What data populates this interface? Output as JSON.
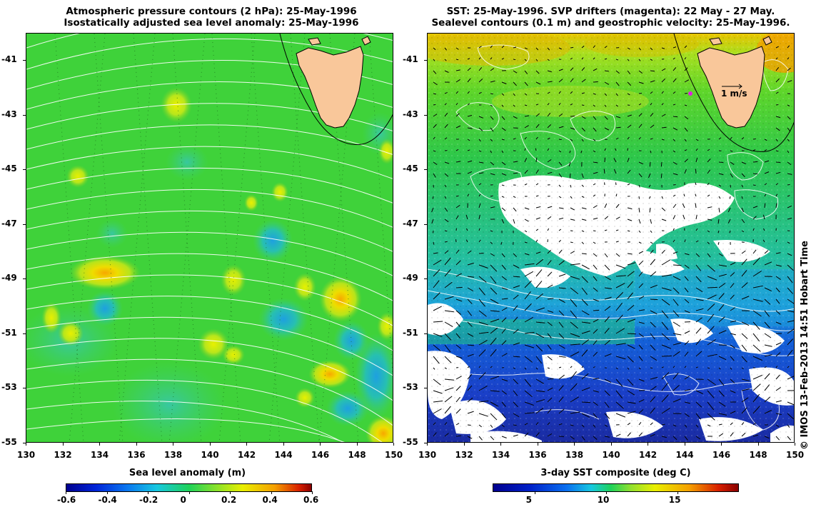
{
  "left_panel": {
    "title_line1": "Atmospheric pressure contours (2 hPa): 25-May-1996",
    "title_line2": "Isostatically adjusted sea level anomaly: 25-May-1996",
    "y_ticks": [
      "-41",
      "-43",
      "-45",
      "-47",
      "-49",
      "-51",
      "-53",
      "-55"
    ],
    "x_ticks": [
      "130",
      "132",
      "134",
      "136",
      "138",
      "140",
      "142",
      "144",
      "146",
      "148",
      "150"
    ],
    "colorbar_title": "Sea level anomaly (m)",
    "colorbar_ticks": [
      "-0.6",
      "-0.4",
      "-0.2",
      "0",
      "0.2",
      "0.4",
      "0.6"
    ]
  },
  "right_panel": {
    "title_line1": "SST: 25-May-1996. SVP drifters (magenta): 22 May - 27 May.",
    "title_line2": "Sealevel contours (0.1 m) and geostrophic velocity: 25-May-1996.",
    "y_ticks": [
      "-41",
      "-43",
      "-45",
      "-47",
      "-49",
      "-51",
      "-53",
      "-55"
    ],
    "x_ticks": [
      "130",
      "132",
      "134",
      "136",
      "138",
      "140",
      "142",
      "144",
      "146",
      "148",
      "150"
    ],
    "velocity_scale_label": "1 m/s",
    "colorbar_title": "3-day SST composite (deg C)",
    "colorbar_ticks": [
      "5",
      "10",
      "15"
    ]
  },
  "credit": "© IMOS 13-Feb-2013 14:51 Hobart Time",
  "colors": {
    "land": "#f9c79a",
    "ocean_green": "#33d633",
    "sst_blue": "#1a3fd0",
    "drifter": "#e020e0"
  }
}
